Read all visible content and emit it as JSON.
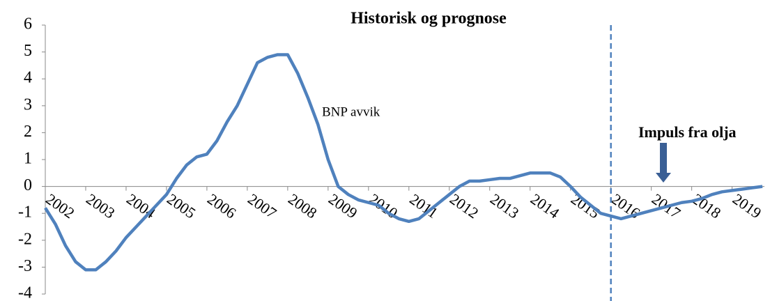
{
  "chart_data": {
    "type": "line",
    "title": "Historisk og prognose",
    "annotations": [
      "BNP avvik",
      "Impuls fra olja"
    ],
    "forecast_start": 2016,
    "x": [
      2002,
      2002.25,
      2002.5,
      2002.75,
      2003,
      2003.25,
      2003.5,
      2003.75,
      2004,
      2004.25,
      2004.5,
      2004.75,
      2005,
      2005.25,
      2005.5,
      2005.75,
      2006,
      2006.25,
      2006.5,
      2006.75,
      2007,
      2007.25,
      2007.5,
      2007.75,
      2008,
      2008.25,
      2008.5,
      2008.75,
      2009,
      2009.25,
      2009.5,
      2009.75,
      2010,
      2010.25,
      2010.5,
      2010.75,
      2011,
      2011.25,
      2011.5,
      2011.75,
      2012,
      2012.25,
      2012.5,
      2012.75,
      2013,
      2013.25,
      2013.5,
      2013.75,
      2014,
      2014.25,
      2014.5,
      2014.75,
      2015,
      2015.25,
      2015.5,
      2015.75,
      2016,
      2016.25,
      2016.5,
      2016.75,
      2017,
      2017.25,
      2017.5,
      2017.75,
      2018,
      2018.25,
      2018.5,
      2018.75,
      2019,
      2019.25,
      2019.5,
      2019.75
    ],
    "series": [
      {
        "name": "BNP avvik",
        "color": "#4f81bd",
        "values": [
          -0.8,
          -1.4,
          -2.2,
          -2.8,
          -3.1,
          -3.1,
          -2.8,
          -2.4,
          -1.9,
          -1.5,
          -1.1,
          -0.7,
          -0.3,
          0.3,
          0.8,
          1.1,
          1.2,
          1.7,
          2.4,
          3.0,
          3.8,
          4.6,
          4.8,
          4.9,
          4.9,
          4.2,
          3.3,
          2.3,
          1.0,
          0.0,
          -0.3,
          -0.5,
          -0.6,
          -0.7,
          -1.0,
          -1.2,
          -1.3,
          -1.2,
          -0.9,
          -0.6,
          -0.3,
          0.0,
          0.2,
          0.2,
          0.25,
          0.3,
          0.3,
          0.4,
          0.5,
          0.5,
          0.5,
          0.35,
          0.0,
          -0.4,
          -0.7,
          -1.0,
          -1.1,
          -1.2,
          -1.1,
          -1.0,
          -0.9,
          -0.8,
          -0.7,
          -0.6,
          -0.55,
          -0.45,
          -0.3,
          -0.2,
          -0.15,
          -0.1,
          -0.05,
          0.0
        ]
      }
    ],
    "xlim": [
      2002,
      2019.8
    ],
    "xticks": [
      2002,
      2003,
      2004,
      2005,
      2006,
      2007,
      2008,
      2009,
      2010,
      2011,
      2012,
      2013,
      2014,
      2015,
      2016,
      2017,
      2018,
      2019
    ],
    "ylim": [
      -4,
      6
    ],
    "yticks": [
      -4,
      -3,
      -2,
      -1,
      0,
      1,
      2,
      3,
      4,
      5,
      6
    ]
  }
}
